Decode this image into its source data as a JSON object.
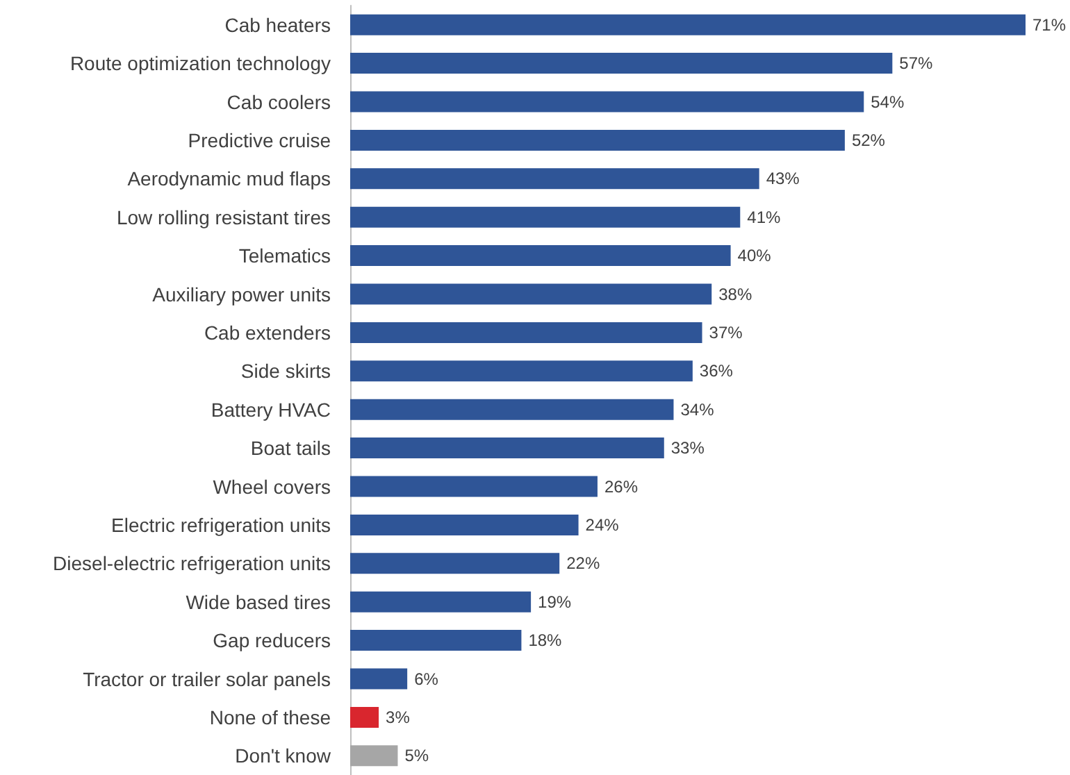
{
  "chart_data": {
    "type": "bar",
    "orientation": "horizontal",
    "categories": [
      "Cab heaters",
      "Route optimization technology",
      "Cab coolers",
      "Predictive cruise",
      "Aerodynamic mud flaps",
      "Low rolling resistant tires",
      "Telematics",
      "Auxiliary power units",
      "Cab extenders",
      "Side skirts",
      "Battery HVAC",
      "Boat tails",
      "Wheel covers",
      "Electric refrigeration units",
      "Diesel-electric refrigeration units",
      "Wide based tires",
      "Gap reducers",
      "Tractor or trailer solar panels",
      "None of these",
      "Don't know"
    ],
    "values": [
      71,
      57,
      54,
      52,
      43,
      41,
      40,
      38,
      37,
      36,
      34,
      33,
      26,
      24,
      22,
      19,
      18,
      6,
      3,
      5
    ],
    "value_labels": [
      "71%",
      "57%",
      "54%",
      "52%",
      "43%",
      "41%",
      "40%",
      "38%",
      "37%",
      "36%",
      "34%",
      "33%",
      "26%",
      "24%",
      "22%",
      "19%",
      "18%",
      "6%",
      "3%",
      "5%"
    ],
    "colors": [
      "#2f5597",
      "#2f5597",
      "#2f5597",
      "#2f5597",
      "#2f5597",
      "#2f5597",
      "#2f5597",
      "#2f5597",
      "#2f5597",
      "#2f5597",
      "#2f5597",
      "#2f5597",
      "#2f5597",
      "#2f5597",
      "#2f5597",
      "#2f5597",
      "#2f5597",
      "#2f5597",
      "#d9262e",
      "#a6a6a6"
    ]
  }
}
